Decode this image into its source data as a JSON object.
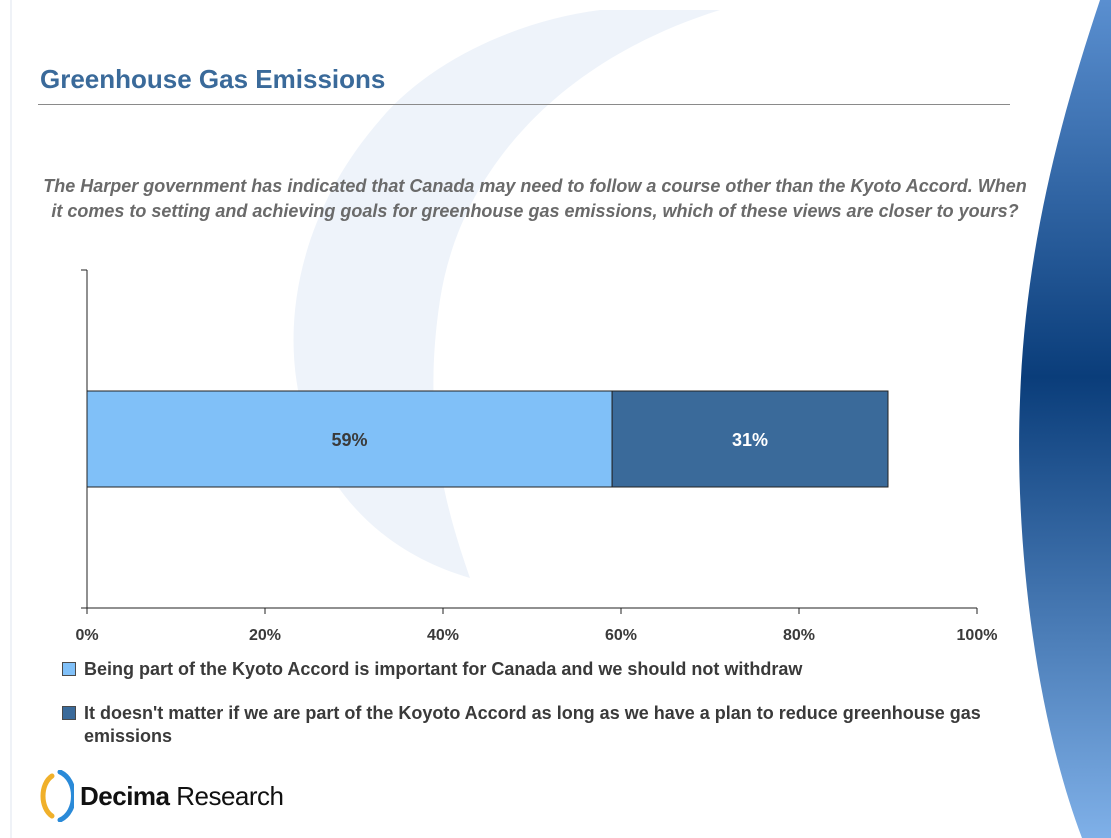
{
  "header": {
    "title": "Greenhouse Gas Emissions"
  },
  "question": "The Harper government has indicated that Canada may need to follow a course other than the Kyoto Accord.  When it comes to setting and achieving goals for greenhouse gas emissions, which of these views are closer to yours?",
  "colors": {
    "title": "#3a6a9a",
    "series_light": "#80c0f8",
    "series_dark": "#3a6a9a",
    "brand_accent": "#f0b02a",
    "brand_blue": "#0a3d7a"
  },
  "chart_data": {
    "type": "bar",
    "orientation": "horizontal",
    "stacked": true,
    "categories": [
      ""
    ],
    "series": [
      {
        "name": "Being part of the Kyoto Accord is important for Canada and we should not withdraw",
        "values": [
          59
        ],
        "label": "59%"
      },
      {
        "name": "It doesn't matter if we are part of the Koyoto Accord as long as we have a plan to reduce greenhouse gas emissions",
        "values": [
          31
        ],
        "label": "31%"
      }
    ],
    "xlim": [
      0,
      100
    ],
    "xticks": [
      "0%",
      "20%",
      "40%",
      "60%",
      "80%",
      "100%"
    ],
    "xtick_values": [
      0,
      20,
      40,
      60,
      80,
      100
    ],
    "grid": false,
    "legend_position": "bottom"
  },
  "logo": {
    "brand_bold": "Decima",
    "brand_rest": " Research"
  }
}
